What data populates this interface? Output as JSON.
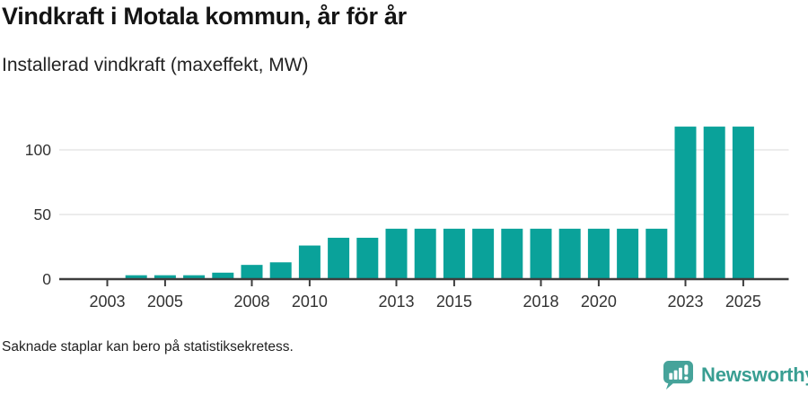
{
  "chart_data": {
    "type": "bar",
    "title": "Vindkraft i Motala kommun, år för år",
    "subtitle": "Installerad vindkraft (maxeffekt, MW)",
    "note": "Saknade staplar kan bero på statistiksekretess.",
    "unit": "MW",
    "x": [
      2004,
      2005,
      2006,
      2007,
      2008,
      2009,
      2010,
      2011,
      2012,
      2013,
      2014,
      2015,
      2016,
      2017,
      2018,
      2019,
      2020,
      2021,
      2022,
      2023,
      2024,
      2025
    ],
    "values": [
      3,
      3,
      3,
      5,
      11,
      13,
      26,
      32,
      32,
      39,
      39,
      39,
      39,
      39,
      39,
      39,
      39,
      39,
      39,
      118,
      118,
      118
    ],
    "xticks": [
      2003,
      2005,
      2008,
      2010,
      2013,
      2015,
      2018,
      2020,
      2023,
      2025
    ],
    "yticks": [
      0,
      50,
      100
    ],
    "ylim": [
      0,
      125
    ],
    "grid": "horizontal",
    "legend": "none"
  },
  "branding": {
    "wordmark": "Newsworthy",
    "icon": "newsworthy-speech-bubble-bar-chart-icon"
  },
  "colors": {
    "bar": "#0aa29a",
    "axis": "#3d3d3d",
    "grid": "#e5e5e5",
    "tick_label": "#333333",
    "title": "#141414",
    "text": "#222222",
    "logo_icon": "#46a39a",
    "logo_text": "#399e92",
    "background": "#ffffff"
  }
}
